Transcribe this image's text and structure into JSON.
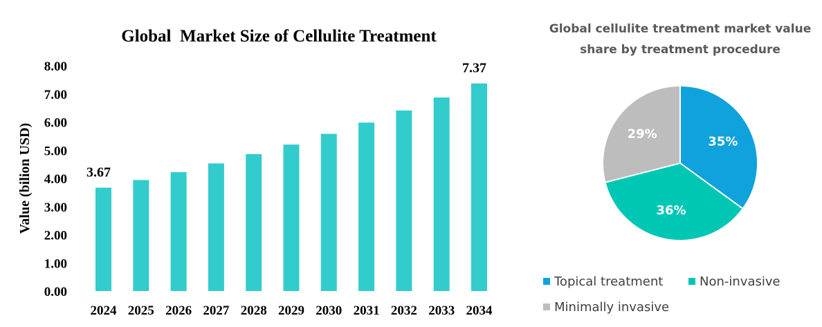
{
  "chart_data": [
    {
      "type": "bar",
      "title": "Global  Market Size of Cellulite Treatment",
      "ylabel": "Value (bilion USD)",
      "xlabel": "",
      "categories": [
        "2024",
        "2025",
        "2026",
        "2027",
        "2028",
        "2029",
        "2030",
        "2031",
        "2032",
        "2033",
        "2034"
      ],
      "values": [
        3.67,
        3.94,
        4.22,
        4.53,
        4.86,
        5.2,
        5.58,
        5.98,
        6.41,
        6.87,
        7.37
      ],
      "data_labels": [
        "3.67",
        "",
        "",
        "",
        "",
        "",
        "",
        "",
        "",
        "",
        "7.37"
      ],
      "ylim": [
        0,
        8
      ],
      "yticks": [
        "0.00",
        "1.00",
        "2.00",
        "3.00",
        "4.00",
        "5.00",
        "6.00",
        "7.00",
        "8.00"
      ],
      "grid": false,
      "bar_color": "#33CCCC"
    },
    {
      "type": "pie",
      "title_lines": [
        "Global cellulite treatment market value",
        "share by treatment procedure"
      ],
      "slices": [
        {
          "label": "Topical treatment",
          "value": 35,
          "display": "35%",
          "color": "#0FA2DD"
        },
        {
          "label": "Non-invasive",
          "value": 36,
          "display": "36%",
          "color": "#00C7B4"
        },
        {
          "label": "Minimally invasive",
          "value": 29,
          "display": "29%",
          "color": "#BDBDBD"
        }
      ],
      "legend_position": "bottom"
    }
  ]
}
